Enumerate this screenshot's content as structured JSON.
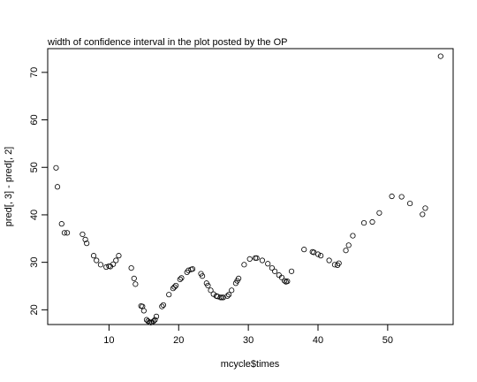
{
  "chart_data": {
    "type": "scatter",
    "title": "width of confidence interval in the plot posted by the OP",
    "xlabel": "mcycle$times",
    "ylabel": "pred[, 3] - pred[, 2]",
    "xlim": [
      1.2,
      59.4
    ],
    "ylim": [
      16.9,
      75.0
    ],
    "x_ticks": [
      10,
      20,
      30,
      40,
      50
    ],
    "y_ticks": [
      20,
      30,
      40,
      50,
      60,
      70
    ],
    "x_tick_labels": [
      "10",
      "20",
      "30",
      "40",
      "50"
    ],
    "y_tick_labels": [
      "20",
      "30",
      "40",
      "50",
      "60",
      "70"
    ],
    "grid": false,
    "legend": "none",
    "marker": "open-circle",
    "colors": {
      "points": "#000000",
      "background": "#ffffff"
    },
    "points": [
      [
        2.4,
        49.9
      ],
      [
        2.6,
        45.9
      ],
      [
        3.2,
        38.1
      ],
      [
        3.6,
        36.2
      ],
      [
        4.0,
        36.2
      ],
      [
        6.2,
        35.9
      ],
      [
        6.6,
        34.8
      ],
      [
        6.8,
        34.0
      ],
      [
        7.8,
        31.4
      ],
      [
        8.2,
        30.4
      ],
      [
        8.8,
        29.5
      ],
      [
        9.6,
        29.0
      ],
      [
        10.0,
        29.2
      ],
      [
        10.2,
        29.1
      ],
      [
        10.6,
        29.6
      ],
      [
        11.0,
        30.4
      ],
      [
        11.4,
        31.4
      ],
      [
        13.2,
        28.8
      ],
      [
        13.6,
        26.6
      ],
      [
        13.8,
        25.4
      ],
      [
        14.6,
        20.8
      ],
      [
        14.8,
        20.7
      ],
      [
        15.0,
        19.8
      ],
      [
        15.4,
        17.9
      ],
      [
        15.6,
        17.6
      ],
      [
        15.8,
        17.4
      ],
      [
        16.0,
        17.3
      ],
      [
        16.2,
        17.4
      ],
      [
        16.4,
        17.6
      ],
      [
        16.6,
        17.9
      ],
      [
        16.8,
        18.6
      ],
      [
        17.6,
        20.7
      ],
      [
        17.8,
        21.0
      ],
      [
        18.6,
        23.2
      ],
      [
        19.2,
        24.5
      ],
      [
        19.4,
        24.8
      ],
      [
        19.6,
        25.1
      ],
      [
        20.2,
        26.4
      ],
      [
        20.4,
        26.7
      ],
      [
        21.2,
        27.9
      ],
      [
        21.4,
        28.3
      ],
      [
        21.8,
        28.5
      ],
      [
        22.0,
        28.6
      ],
      [
        23.2,
        27.6
      ],
      [
        23.4,
        27.1
      ],
      [
        24.0,
        25.6
      ],
      [
        24.2,
        25.1
      ],
      [
        24.6,
        24.1
      ],
      [
        25.0,
        23.3
      ],
      [
        25.4,
        22.9
      ],
      [
        25.6,
        22.8
      ],
      [
        26.0,
        22.6
      ],
      [
        26.2,
        22.6
      ],
      [
        26.4,
        22.6
      ],
      [
        27.0,
        22.9
      ],
      [
        27.2,
        23.2
      ],
      [
        27.6,
        24.1
      ],
      [
        28.2,
        25.6
      ],
      [
        28.4,
        26.1
      ],
      [
        28.6,
        26.6
      ],
      [
        29.4,
        29.5
      ],
      [
        30.2,
        30.7
      ],
      [
        31.0,
        30.9
      ],
      [
        31.2,
        30.9
      ],
      [
        32.0,
        30.4
      ],
      [
        32.8,
        29.7
      ],
      [
        33.4,
        28.8
      ],
      [
        33.8,
        28.1
      ],
      [
        34.4,
        27.3
      ],
      [
        34.8,
        26.8
      ],
      [
        35.2,
        26.1
      ],
      [
        35.4,
        25.9
      ],
      [
        35.6,
        26.0
      ],
      [
        36.2,
        28.1
      ],
      [
        38.0,
        32.7
      ],
      [
        39.2,
        32.2
      ],
      [
        39.4,
        32.1
      ],
      [
        40.0,
        31.7
      ],
      [
        40.4,
        31.4
      ],
      [
        41.6,
        30.4
      ],
      [
        42.4,
        29.5
      ],
      [
        42.8,
        29.4
      ],
      [
        43.0,
        29.8
      ],
      [
        44.0,
        32.5
      ],
      [
        44.4,
        33.6
      ],
      [
        45.0,
        35.6
      ],
      [
        46.6,
        38.3
      ],
      [
        47.8,
        38.5
      ],
      [
        48.8,
        40.4
      ],
      [
        50.6,
        43.9
      ],
      [
        52.0,
        43.8
      ],
      [
        53.2,
        42.4
      ],
      [
        55.0,
        40.1
      ],
      [
        55.4,
        41.4
      ],
      [
        57.6,
        73.4
      ]
    ]
  }
}
